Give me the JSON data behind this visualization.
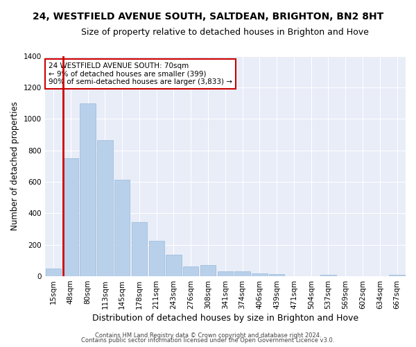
{
  "title1": "24, WESTFIELD AVENUE SOUTH, SALTDEAN, BRIGHTON, BN2 8HT",
  "title2": "Size of property relative to detached houses in Brighton and Hove",
  "xlabel": "Distribution of detached houses by size in Brighton and Hove",
  "ylabel": "Number of detached properties",
  "categories": [
    "15sqm",
    "48sqm",
    "80sqm",
    "113sqm",
    "145sqm",
    "178sqm",
    "211sqm",
    "243sqm",
    "276sqm",
    "308sqm",
    "341sqm",
    "374sqm",
    "406sqm",
    "439sqm",
    "471sqm",
    "504sqm",
    "537sqm",
    "569sqm",
    "602sqm",
    "634sqm",
    "667sqm"
  ],
  "values": [
    50,
    750,
    1100,
    865,
    615,
    345,
    225,
    135,
    63,
    70,
    30,
    30,
    20,
    12,
    0,
    0,
    10,
    0,
    0,
    0,
    10
  ],
  "bar_color": "#b8d0ea",
  "bar_edge_color": "#99b8d8",
  "vline_color": "#cc0000",
  "vline_x_index": 1,
  "ylim": [
    0,
    1400
  ],
  "yticks": [
    0,
    200,
    400,
    600,
    800,
    1000,
    1200,
    1400
  ],
  "annotation_text": "24 WESTFIELD AVENUE SOUTH: 70sqm\n← 9% of detached houses are smaller (399)\n90% of semi-detached houses are larger (3,833) →",
  "annotation_box_color": "#ffffff",
  "annotation_box_edge": "#cc0000",
  "footer1": "Contains HM Land Registry data © Crown copyright and database right 2024.",
  "footer2": "Contains public sector information licensed under the Open Government Licence v3.0.",
  "bg_color": "#e8edf8",
  "grid_color": "#ffffff",
  "title_fontsize": 10,
  "subtitle_fontsize": 9,
  "tick_fontsize": 7.5,
  "ylabel_fontsize": 8.5,
  "xlabel_fontsize": 9,
  "annotation_fontsize": 7.5,
  "footer_fontsize": 6
}
